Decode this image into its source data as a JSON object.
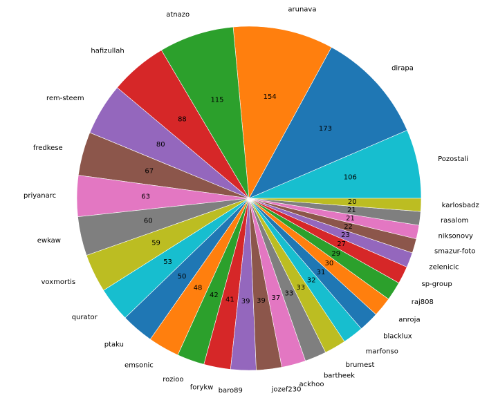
{
  "chart_data": {
    "type": "pie",
    "start_angle_deg": 0,
    "direction": "counterclockwise",
    "edge_color": "#ffffff",
    "slices": [
      {
        "label": "Pozostali",
        "value": 106,
        "color": "#17becf"
      },
      {
        "label": "dirapa",
        "value": 173,
        "color": "#1f77b4"
      },
      {
        "label": "arunava",
        "value": 154,
        "color": "#ff7f0e"
      },
      {
        "label": "atnazo",
        "value": 115,
        "color": "#2ca02c"
      },
      {
        "label": "hafizullah",
        "value": 88,
        "color": "#d62728"
      },
      {
        "label": "rem-steem",
        "value": 80,
        "color": "#9467bd"
      },
      {
        "label": "fredkese",
        "value": 67,
        "color": "#8c564b"
      },
      {
        "label": "priyanarc",
        "value": 63,
        "color": "#e377c2"
      },
      {
        "label": "ewkaw",
        "value": 60,
        "color": "#7f7f7f"
      },
      {
        "label": "voxmortis",
        "value": 59,
        "color": "#bcbd22"
      },
      {
        "label": "qurator",
        "value": 53,
        "color": "#17becf"
      },
      {
        "label": "ptaku",
        "value": 50,
        "color": "#1f77b4"
      },
      {
        "label": "emsonic",
        "value": 48,
        "color": "#ff7f0e"
      },
      {
        "label": "rozioo",
        "value": 42,
        "color": "#2ca02c"
      },
      {
        "label": "forykw",
        "value": 41,
        "color": "#d62728"
      },
      {
        "label": "baro89",
        "value": 39,
        "color": "#9467bd"
      },
      {
        "label": "jozef230",
        "value": 39,
        "color": "#8c564b"
      },
      {
        "label": "ackhoo",
        "value": 37,
        "color": "#e377c2"
      },
      {
        "label": "bartheek",
        "value": 33,
        "color": "#7f7f7f"
      },
      {
        "label": "brumest",
        "value": 33,
        "color": "#bcbd22"
      },
      {
        "label": "marfonso",
        "value": 32,
        "color": "#17becf"
      },
      {
        "label": "blacklux",
        "value": 31,
        "color": "#1f77b4"
      },
      {
        "label": "anroja",
        "value": 30,
        "color": "#ff7f0e"
      },
      {
        "label": "raj808",
        "value": 29,
        "color": "#2ca02c"
      },
      {
        "label": "sp-group",
        "value": 27,
        "color": "#d62728"
      },
      {
        "label": "zelenicic",
        "value": 23,
        "color": "#9467bd"
      },
      {
        "label": "smazur-foto",
        "value": 22,
        "color": "#8c564b"
      },
      {
        "label": "niksonovy",
        "value": 21,
        "color": "#e377c2"
      },
      {
        "label": "rasalom",
        "value": 21,
        "color": "#7f7f7f"
      },
      {
        "label": "karlosbadz",
        "value": 20,
        "color": "#bcbd22"
      }
    ]
  }
}
